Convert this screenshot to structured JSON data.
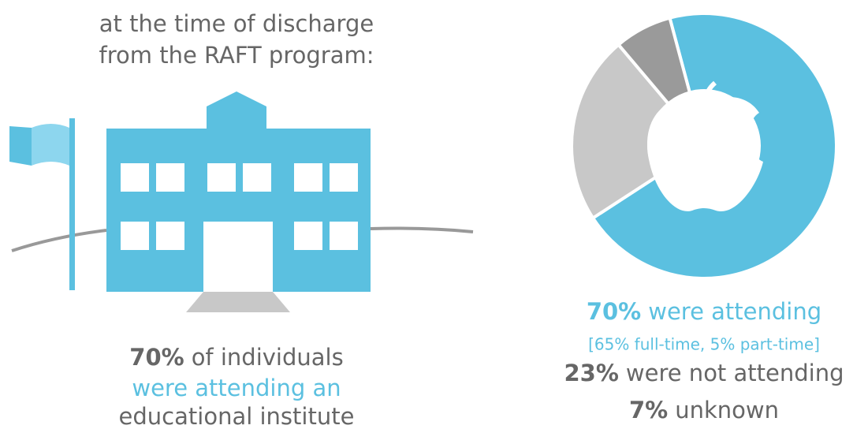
{
  "header": {
    "lines": [
      "at the time of discharge",
      "from the RAFT program:"
    ]
  },
  "left_caption": {
    "value_label": "70%",
    "line1": "of individuals",
    "line2": "were attending an",
    "line3": "educational institute"
  },
  "chart_data": {
    "type": "pie",
    "donut": true,
    "categories": [
      "were attending",
      "were not attending",
      "unknown"
    ],
    "values": [
      70,
      23,
      7
    ],
    "value_labels": [
      "70%",
      "23%",
      "7%"
    ],
    "colors": [
      "#5bc0e0",
      "#c8c8c8",
      "#9a9a9a"
    ],
    "note": "[65% full-time, 5% part-time]"
  }
}
